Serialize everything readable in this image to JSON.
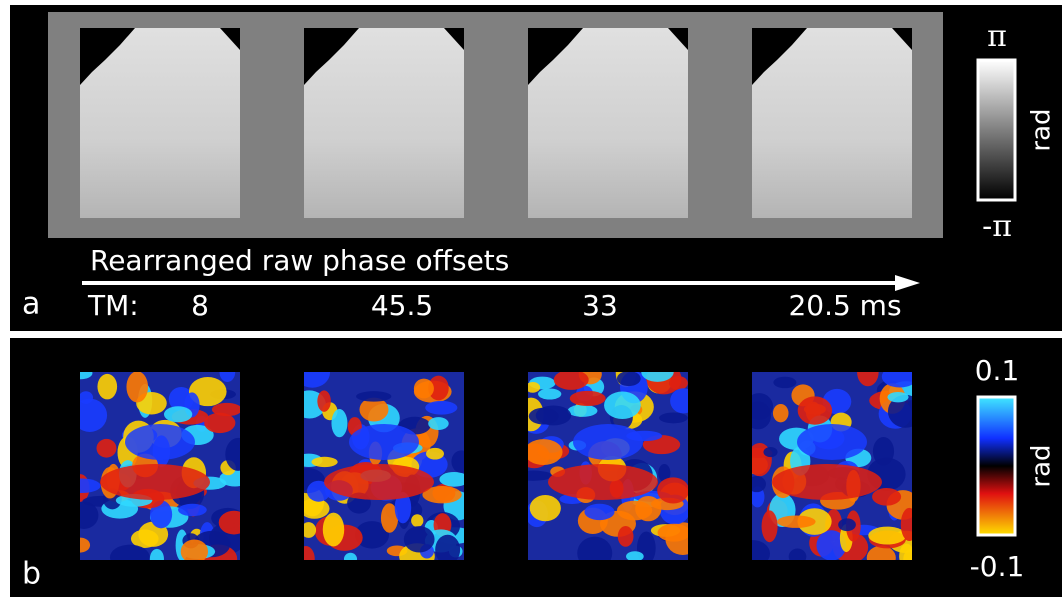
{
  "panel_a": {
    "label": "a",
    "colorbar": {
      "max": "π",
      "min": "-π",
      "unit": "rad"
    },
    "caption": "Rearranged raw phase offsets",
    "tm_label": "TM:",
    "tm_values": [
      "8",
      "45.5",
      "33",
      "20.5 ms"
    ]
  },
  "panel_b": {
    "label": "b",
    "colorbar": {
      "max": "0.1",
      "min": "-0.1",
      "unit": "rad"
    }
  }
}
